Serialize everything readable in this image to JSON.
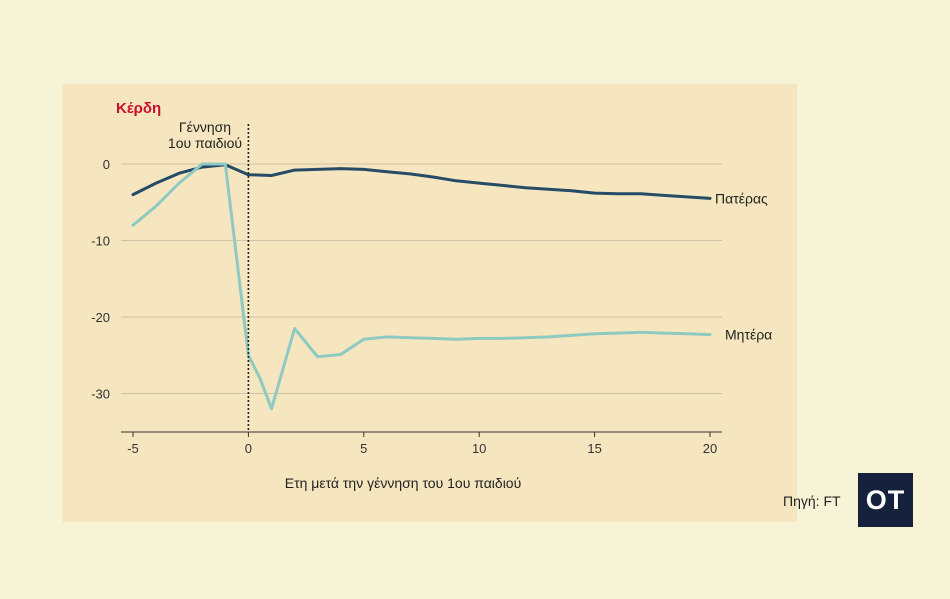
{
  "chart_data": {
    "type": "line",
    "ylabel": "Κέρδη",
    "xlabel": "Ετη μετά την γέννηση του 1ου παιδιού",
    "xlim": [
      -5,
      20
    ],
    "ylim": [
      -35,
      2
    ],
    "x_ticks": [
      -5,
      0,
      5,
      10,
      15,
      20
    ],
    "y_ticks": [
      0,
      -10,
      -20,
      -30
    ],
    "grid": "horizontal",
    "annotation": {
      "x": 0,
      "lines": [
        "Γέννηση",
        "1ου παιδιού"
      ]
    },
    "series": [
      {
        "name": "Πατέρας",
        "color": "#264b66",
        "x": [
          -5,
          -4,
          -3,
          -2,
          -1,
          0,
          1,
          2,
          3,
          4,
          5,
          6,
          7,
          8,
          9,
          10,
          11,
          12,
          13,
          14,
          15,
          16,
          17,
          18,
          19,
          20
        ],
        "values": [
          -4,
          -2.5,
          -1.2,
          -0.4,
          -0.1,
          -1.4,
          -1.5,
          -0.8,
          -0.7,
          -0.6,
          -0.7,
          -1.0,
          -1.3,
          -1.7,
          -2.2,
          -2.5,
          -2.8,
          -3.1,
          -3.3,
          -3.5,
          -3.8,
          -3.9,
          -3.9,
          -4.1,
          -4.3,
          -4.5
        ]
      },
      {
        "name": "Μητέρα",
        "color": "#8ec9c2",
        "x": [
          -5,
          -4,
          -3,
          -2,
          -1,
          0,
          0.5,
          1,
          2,
          3,
          4,
          5,
          6,
          7,
          8,
          9,
          10,
          11,
          12,
          13,
          14,
          15,
          16,
          17,
          18,
          19,
          20
        ],
        "values": [
          -8,
          -5.5,
          -2.5,
          0,
          0,
          -25,
          -28,
          -32,
          -21.5,
          -25.2,
          -24.9,
          -22.9,
          -22.6,
          -22.7,
          -22.8,
          -22.9,
          -22.8,
          -22.8,
          -22.7,
          -22.6,
          -22.4,
          -22.2,
          -22.1,
          -22.0,
          -22.1,
          -22.2,
          -22.3
        ]
      }
    ]
  },
  "source_label": "Πηγή: FT",
  "logo_text": "OT"
}
